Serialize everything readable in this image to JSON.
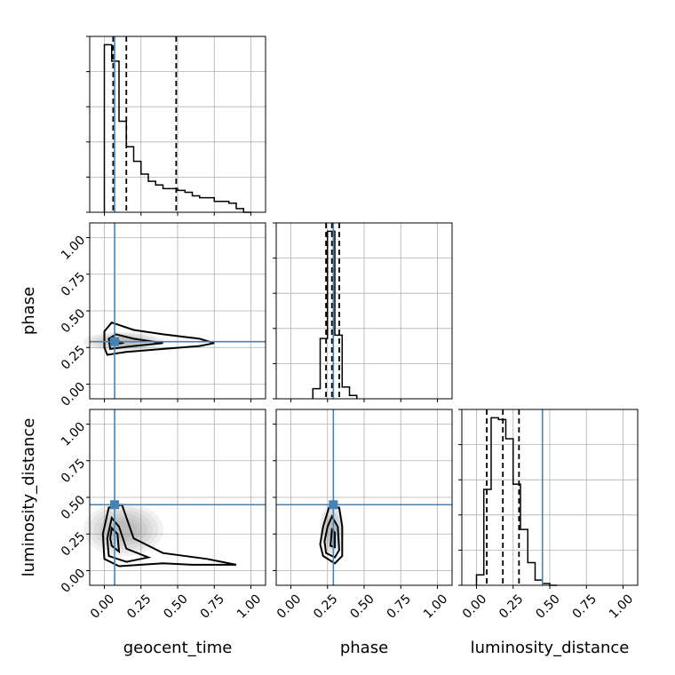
{
  "chart_data": {
    "type": "corner",
    "parameters": [
      "geocent_time",
      "phase",
      "luminosity_distance"
    ],
    "axis_labels": {
      "x": [
        "geocent_time",
        "phase",
        "luminosity_distance"
      ],
      "y": [
        "phase",
        "luminosity_distance"
      ]
    },
    "axis_range": [
      -0.1,
      1.1
    ],
    "tick_labels": [
      "0.00",
      "0.25",
      "0.50",
      "0.75",
      "1.00"
    ],
    "ticks": [
      0,
      0.25,
      0.5,
      0.75,
      1.0
    ],
    "grid": true,
    "truths": {
      "geocent_time": 0.07,
      "phase": 0.29,
      "luminosity_distance": 0.45
    },
    "quantiles": {
      "geocent_time": [
        0.06,
        0.15,
        0.49
      ],
      "phase": [
        0.24,
        0.28,
        0.33
      ],
      "luminosity_distance": [
        0.07,
        0.18,
        0.29
      ]
    },
    "histograms": {
      "geocent_time": {
        "edges": [
          0.0,
          0.05,
          0.1,
          0.15,
          0.2,
          0.25,
          0.3,
          0.35,
          0.4,
          0.45,
          0.5,
          0.55,
          0.6,
          0.65,
          0.7,
          0.75,
          0.8,
          0.85,
          0.9,
          0.95,
          1.0
        ],
        "counts": [
          0.92,
          0.83,
          0.5,
          0.36,
          0.28,
          0.21,
          0.17,
          0.15,
          0.13,
          0.13,
          0.12,
          0.11,
          0.09,
          0.08,
          0.08,
          0.06,
          0.06,
          0.05,
          0.02,
          0.0
        ]
      },
      "phase": {
        "edges": [
          0.15,
          0.2,
          0.25,
          0.3,
          0.35,
          0.4,
          0.45
        ],
        "counts": [
          0.06,
          0.36,
          1.0,
          0.38,
          0.07,
          0.02
        ]
      },
      "luminosity_distance": {
        "edges": [
          0.0,
          0.05,
          0.1,
          0.15,
          0.2,
          0.25,
          0.3,
          0.35,
          0.4,
          0.45,
          0.5,
          0.55
        ],
        "counts": [
          0.06,
          0.55,
          0.96,
          0.95,
          0.84,
          0.58,
          0.32,
          0.13,
          0.03,
          0.01,
          0.0
        ]
      }
    },
    "posteriors_2d": [
      {
        "x": "geocent_time",
        "y": "phase",
        "peak": [
          0.07,
          0.29
        ],
        "contours": [
          [
            [
              0.02,
              0.2
            ],
            [
              0.15,
              0.22
            ],
            [
              0.4,
              0.24
            ],
            [
              0.65,
              0.26
            ],
            [
              0.75,
              0.28
            ],
            [
              0.65,
              0.31
            ],
            [
              0.4,
              0.34
            ],
            [
              0.2,
              0.37
            ],
            [
              0.05,
              0.42
            ],
            [
              0.0,
              0.36
            ],
            [
              0.0,
              0.25
            ]
          ],
          [
            [
              0.04,
              0.24
            ],
            [
              0.2,
              0.26
            ],
            [
              0.4,
              0.28
            ],
            [
              0.2,
              0.31
            ],
            [
              0.08,
              0.34
            ],
            [
              0.03,
              0.31
            ]
          ],
          [
            [
              0.05,
              0.27
            ],
            [
              0.12,
              0.28
            ],
            [
              0.07,
              0.31
            ],
            [
              0.04,
              0.29
            ]
          ]
        ]
      },
      {
        "x": "geocent_time",
        "y": "luminosity_distance",
        "peak": [
          0.07,
          0.45
        ],
        "contours": [
          [
            [
              0.0,
              0.08
            ],
            [
              0.1,
              0.03
            ],
            [
              0.4,
              0.05
            ],
            [
              0.6,
              0.04
            ],
            [
              0.9,
              0.04
            ],
            [
              0.7,
              0.08
            ],
            [
              0.4,
              0.12
            ],
            [
              0.2,
              0.22
            ],
            [
              0.12,
              0.45
            ],
            [
              0.03,
              0.43
            ],
            [
              -0.01,
              0.25
            ]
          ],
          [
            [
              0.03,
              0.1
            ],
            [
              0.15,
              0.06
            ],
            [
              0.3,
              0.09
            ],
            [
              0.15,
              0.15
            ],
            [
              0.1,
              0.3
            ],
            [
              0.05,
              0.36
            ],
            [
              0.02,
              0.22
            ]
          ],
          [
            [
              0.05,
              0.17
            ],
            [
              0.1,
              0.13
            ],
            [
              0.09,
              0.25
            ],
            [
              0.05,
              0.29
            ],
            [
              0.04,
              0.22
            ]
          ]
        ]
      },
      {
        "x": "phase",
        "y": "luminosity_distance",
        "peak": [
          0.28,
          0.45
        ],
        "contours": [
          [
            [
              0.22,
              0.1
            ],
            [
              0.3,
              0.05
            ],
            [
              0.35,
              0.1
            ],
            [
              0.35,
              0.3
            ],
            [
              0.33,
              0.43
            ],
            [
              0.26,
              0.43
            ],
            [
              0.22,
              0.3
            ],
            [
              0.2,
              0.18
            ]
          ],
          [
            [
              0.24,
              0.12
            ],
            [
              0.3,
              0.09
            ],
            [
              0.33,
              0.14
            ],
            [
              0.32,
              0.3
            ],
            [
              0.28,
              0.37
            ],
            [
              0.25,
              0.3
            ],
            [
              0.23,
              0.2
            ]
          ],
          [
            [
              0.27,
              0.17
            ],
            [
              0.3,
              0.16
            ],
            [
              0.3,
              0.26
            ],
            [
              0.28,
              0.28
            ]
          ]
        ]
      }
    ]
  }
}
